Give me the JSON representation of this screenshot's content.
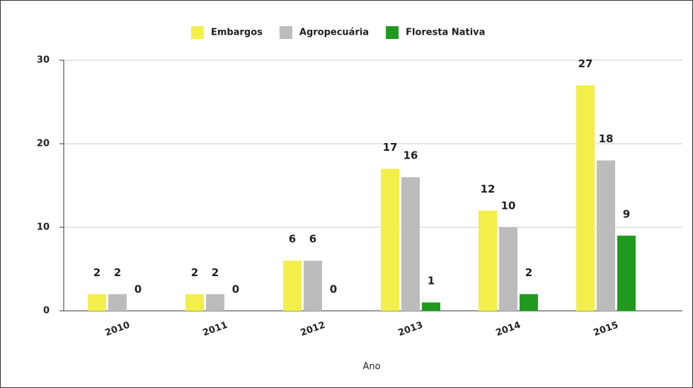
{
  "chart_data": {
    "type": "bar",
    "categories": [
      "2010",
      "2011",
      "2012",
      "2013",
      "2014",
      "2015"
    ],
    "series": [
      {
        "name": "Embargos",
        "color": "#f3ef4a",
        "values": [
          2,
          2,
          6,
          17,
          12,
          27
        ]
      },
      {
        "name": "Agropecuária",
        "color": "#bcbcbc",
        "values": [
          2,
          2,
          6,
          16,
          10,
          18
        ]
      },
      {
        "name": "Floresta Nativa",
        "color": "#1f9a1f",
        "values": [
          0,
          0,
          0,
          1,
          2,
          9
        ]
      }
    ],
    "x_label": "Ano",
    "ylim": [
      0,
      30
    ],
    "yticks": [
      0,
      10,
      20,
      30
    ],
    "grid": true,
    "legend": "top"
  }
}
